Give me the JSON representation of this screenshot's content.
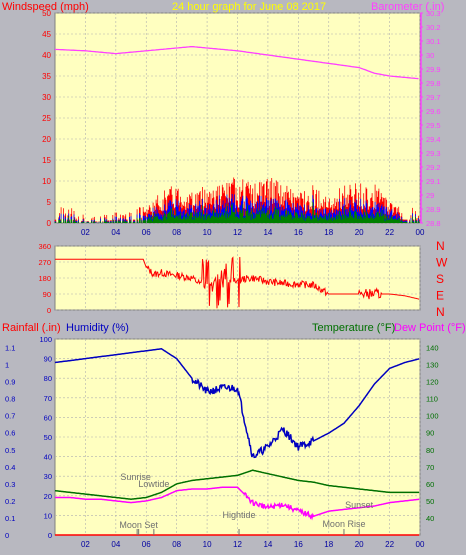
{
  "colors": {
    "background": "#b8b8c0",
    "plot_bg": "#ffffc0",
    "grid": "#b0b0b0",
    "windspeed": "#ff0000",
    "windgust": "#0000ff",
    "windavg": "#008000",
    "barometer": "#ff40ff",
    "winddir": "#ff0000",
    "humidity": "#0000c0",
    "temperature": "#007000",
    "dewpoint": "#ff00ff",
    "rainfall": "#ff0000",
    "title": "#ffff00",
    "events": "#707070"
  },
  "header": {
    "left": "Windspeed (mph)",
    "center": "24 hour graph for   June 08 2017",
    "right": "Barometer (.in)"
  },
  "bottom_header": {
    "rain": "Rainfall (.in)",
    "humidity": "Humidity (%)",
    "temperature": "Temperature (°F)",
    "dewpoint": "Dew Point (°F)"
  },
  "x_ticks": [
    "02",
    "04",
    "06",
    "08",
    "10",
    "12",
    "14",
    "16",
    "18",
    "20",
    "22",
    "00"
  ],
  "compass": [
    "N",
    "W",
    "S",
    "E",
    "N"
  ],
  "events": [
    "Sunrise",
    "Lowtide",
    "Moon Set",
    "Hightide",
    "Sunset",
    "Moon Rise"
  ],
  "chart_data": [
    {
      "type": "line",
      "title": "24 hour graph for June 08 2017",
      "ylabel": "Windspeed (mph)",
      "y2label": "Barometer (.in)",
      "x_ticks": [
        "02",
        "04",
        "06",
        "08",
        "10",
        "12",
        "14",
        "16",
        "18",
        "20",
        "22",
        "00"
      ],
      "ylim": [
        0,
        50
      ],
      "y_ticks": [
        0,
        5,
        10,
        15,
        20,
        25,
        30,
        35,
        40,
        45,
        50
      ],
      "y2lim": [
        29.8,
        30.3
      ],
      "y2_ticks": [
        "29.8",
        "29.9",
        "30",
        "30.1",
        "30.2",
        "30.3"
      ],
      "y2_ticks_full": [
        "28.8",
        "28.9",
        "29",
        "29.1",
        "29.2",
        "29.3",
        "29.4",
        "29.5",
        "29.6",
        "29.7",
        "29.8",
        "29.9",
        "30",
        "30.1",
        "30.2",
        "30.3"
      ],
      "series": [
        {
          "name": "Barometer (.in)",
          "x": [
            0,
            2,
            4,
            6,
            8,
            9,
            10,
            12,
            14,
            16,
            18,
            20,
            21,
            22,
            23,
            24
          ],
          "values": [
            30.04,
            30.03,
            30.01,
            30.03,
            30.05,
            30.06,
            30.05,
            30.03,
            30.0,
            29.97,
            29.94,
            29.91,
            29.87,
            29.85,
            29.84,
            29.83
          ]
        },
        {
          "name": "Windspeed (mph)",
          "x": [
            0,
            1,
            2,
            3,
            4,
            5,
            6,
            7,
            8,
            9,
            10,
            11,
            12,
            13,
            14,
            15,
            16,
            17,
            18,
            19,
            20,
            21,
            22,
            23,
            24
          ],
          "values": [
            2,
            2,
            1,
            1,
            2,
            2,
            2,
            4,
            5,
            4,
            5,
            5,
            6,
            5,
            6,
            5,
            4,
            5,
            3,
            5,
            5,
            5,
            3,
            2,
            2
          ]
        }
      ]
    },
    {
      "type": "line",
      "ylabel": "Wind direction (degrees)",
      "ylim": [
        0,
        360
      ],
      "y_ticks": [
        0,
        90,
        180,
        270,
        360
      ],
      "x": [
        0,
        3,
        5.8,
        6,
        6.5,
        7,
        7.5,
        8,
        9,
        9.5,
        10,
        11,
        12,
        13,
        14,
        15,
        16,
        17,
        18,
        19,
        20,
        21,
        22,
        23,
        24
      ],
      "values": [
        285,
        285,
        285,
        240,
        200,
        210,
        200,
        195,
        180,
        150,
        140,
        180,
        170,
        180,
        160,
        150,
        145,
        140,
        90,
        90,
        90,
        90,
        90,
        80,
        60
      ]
    },
    {
      "type": "line",
      "ylabel": "Humidity (%)",
      "y2label": "Temperature (°F) / Dew Point (°F)",
      "ylim": [
        0,
        100
      ],
      "y_ticks": [
        0,
        10,
        20,
        30,
        40,
        50,
        60,
        70,
        80,
        90,
        100
      ],
      "rain_ticks": [
        "0",
        "0.1",
        "0.2",
        "0.3",
        "0.4",
        "0.5",
        "0.6",
        "0.7",
        "0.8",
        "0.9",
        "1",
        "1.1"
      ],
      "y2lim": [
        30,
        145
      ],
      "y2_ticks": [
        40,
        50,
        60,
        70,
        80,
        90,
        100,
        110,
        120,
        130,
        140
      ],
      "x": [
        0,
        1,
        2,
        3,
        4,
        5,
        6,
        7,
        8,
        9,
        10,
        11,
        12,
        13,
        14,
        15,
        16,
        17,
        18,
        19,
        20,
        21,
        22,
        23,
        24
      ],
      "series": [
        {
          "name": "Humidity (%)",
          "values": [
            88,
            89,
            90,
            91,
            92,
            93,
            94,
            95,
            90,
            80,
            73,
            75,
            75,
            40,
            45,
            54,
            45,
            48,
            52,
            57,
            66,
            77,
            85,
            88,
            90
          ]
        },
        {
          "name": "Temperature (°F)",
          "values": [
            56,
            55,
            54,
            53,
            52,
            51,
            52,
            55,
            60,
            62,
            63,
            64,
            65,
            68,
            66,
            64,
            62,
            61,
            59,
            58,
            57,
            56,
            55,
            55,
            55
          ]
        },
        {
          "name": "Dew Point (°F)",
          "values": [
            52,
            52,
            51,
            51,
            50,
            49,
            50,
            52,
            56,
            57,
            57,
            58,
            58,
            49,
            46,
            48,
            44,
            41,
            44,
            45,
            46,
            47,
            49,
            50,
            51
          ]
        },
        {
          "name": "Rainfall (.in)",
          "values": [
            0,
            0,
            0,
            0,
            0,
            0,
            0,
            0,
            0,
            0,
            0,
            0,
            0,
            0,
            0,
            0,
            0,
            0,
            0,
            0,
            0,
            0,
            0,
            0,
            0
          ]
        }
      ]
    }
  ]
}
